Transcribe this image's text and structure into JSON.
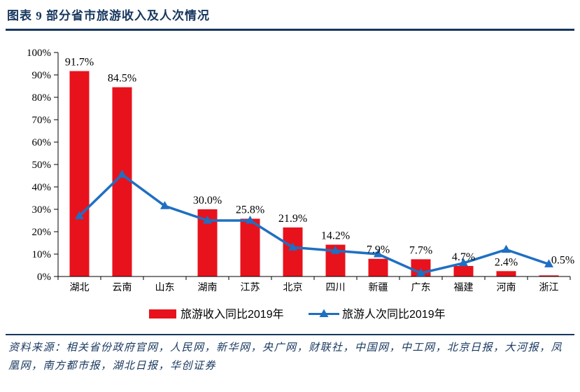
{
  "header": {
    "title": "图表 9 部分省市旅游收入及人次情况"
  },
  "colors": {
    "navy": "#17375E",
    "bar_red": "#E8121C",
    "line_blue": "#1F6FC2",
    "axis": "#000000",
    "label_text": "#000000"
  },
  "chart_data": {
    "type": "bar",
    "combo": "bar+line",
    "title": "部分省市旅游收入及人次情况",
    "categories": [
      "湖北",
      "云南",
      "山东",
      "湖南",
      "江苏",
      "北京",
      "四川",
      "新疆",
      "广东",
      "福建",
      "河南",
      "浙江"
    ],
    "series": [
      {
        "name": "旅游收入同比2019年",
        "type": "bar",
        "color": "#E8121C",
        "values": [
          91.7,
          84.5,
          null,
          30.0,
          25.8,
          21.9,
          14.2,
          7.9,
          7.7,
          4.7,
          2.4,
          0.5
        ],
        "data_labels": [
          "91.7%",
          "84.5%",
          "",
          "30.0%",
          "25.8%",
          "21.9%",
          "14.2%",
          "7.9%",
          "7.7%",
          "4.7%",
          "2.4%",
          "0.5%"
        ]
      },
      {
        "name": "旅游人次同比2019年",
        "type": "line",
        "color": "#1F6FC2",
        "marker": "triangle-up",
        "values": [
          27,
          45.5,
          31.5,
          25,
          25,
          13,
          11.5,
          10,
          1.5,
          6,
          12,
          5.5
        ]
      }
    ],
    "ylim": [
      0,
      100
    ],
    "ytick_step": 10,
    "ytick_labels": [
      "0%",
      "10%",
      "20%",
      "30%",
      "40%",
      "50%",
      "60%",
      "70%",
      "80%",
      "90%",
      "100%"
    ],
    "grid": false,
    "legend_position": "bottom",
    "label_dx": [
      0,
      0,
      0,
      0,
      0,
      0,
      0,
      0,
      0,
      0,
      0,
      20
    ],
    "label_dy": [
      0,
      0,
      0,
      0,
      0,
      0,
      0,
      0,
      0,
      0,
      0,
      -9
    ]
  },
  "footer": {
    "source": "资料来源：相关省份政府官网，人民网，新华网，央广网，财联社，中国网，中工网，北京日报，大河报，凤凰网，南方都市报，湖北日报，华创证券"
  }
}
